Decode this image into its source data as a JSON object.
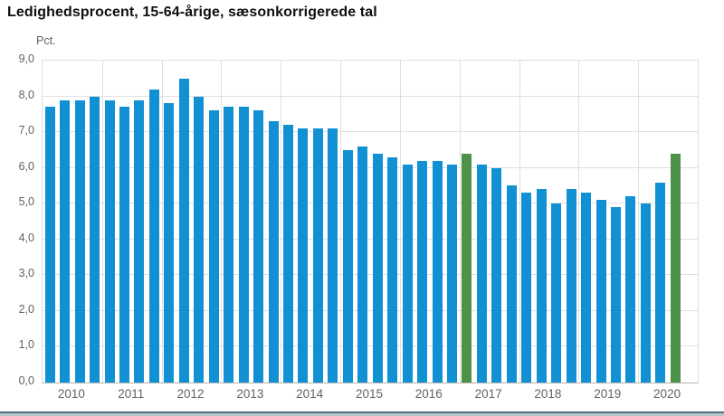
{
  "chart_data": {
    "type": "bar",
    "title": "Ledighedsprocent, 15-64-årige, sæsonkorrigerede tal",
    "ylabel": "Pct.",
    "ylim": [
      0,
      9
    ],
    "ytick_labels": [
      "0,0",
      "1,0",
      "2,0",
      "3,0",
      "4,0",
      "5,0",
      "6,0",
      "7,0",
      "8,0",
      "9,0"
    ],
    "x_unit": "quarter",
    "grid": true,
    "legend": "none",
    "years": [
      {
        "label": "2010",
        "values": [
          7.7,
          7.9,
          7.9,
          8.0
        ]
      },
      {
        "label": "2011",
        "values": [
          7.9,
          7.7,
          7.9,
          8.2
        ]
      },
      {
        "label": "2012",
        "values": [
          7.8,
          8.5,
          8.0,
          7.6
        ]
      },
      {
        "label": "2013",
        "values": [
          7.7,
          7.7,
          7.6,
          7.3
        ]
      },
      {
        "label": "2014",
        "values": [
          7.2,
          7.1,
          7.1,
          7.1
        ]
      },
      {
        "label": "2015",
        "values": [
          6.5,
          6.6,
          6.4,
          6.3
        ]
      },
      {
        "label": "2016",
        "values": [
          6.1,
          6.2,
          6.2,
          6.1
        ]
      },
      {
        "label": "2017",
        "values": [
          6.4,
          6.1,
          6.0,
          5.5
        ]
      },
      {
        "label": "2018",
        "values": [
          5.3,
          5.4,
          5.0,
          5.4
        ]
      },
      {
        "label": "2019",
        "values": [
          5.3,
          5.1,
          4.9,
          5.2
        ]
      },
      {
        "label": "2020",
        "values": [
          5.0,
          5.6,
          6.4
        ]
      }
    ],
    "highlights": [
      {
        "year": "2017",
        "quarter": 1
      },
      {
        "year": "2020",
        "quarter": 3
      }
    ],
    "colors": {
      "bar": "#1191d3",
      "highlight": "#4e9148",
      "grid": "#dfdfdf",
      "axis_line": "#b3b3b3",
      "tick_text": "#62625c",
      "title_text": "#0f0f0f"
    }
  },
  "footer": {
    "divider_dark": "#53707c",
    "divider_light": "#b7c5cd"
  }
}
